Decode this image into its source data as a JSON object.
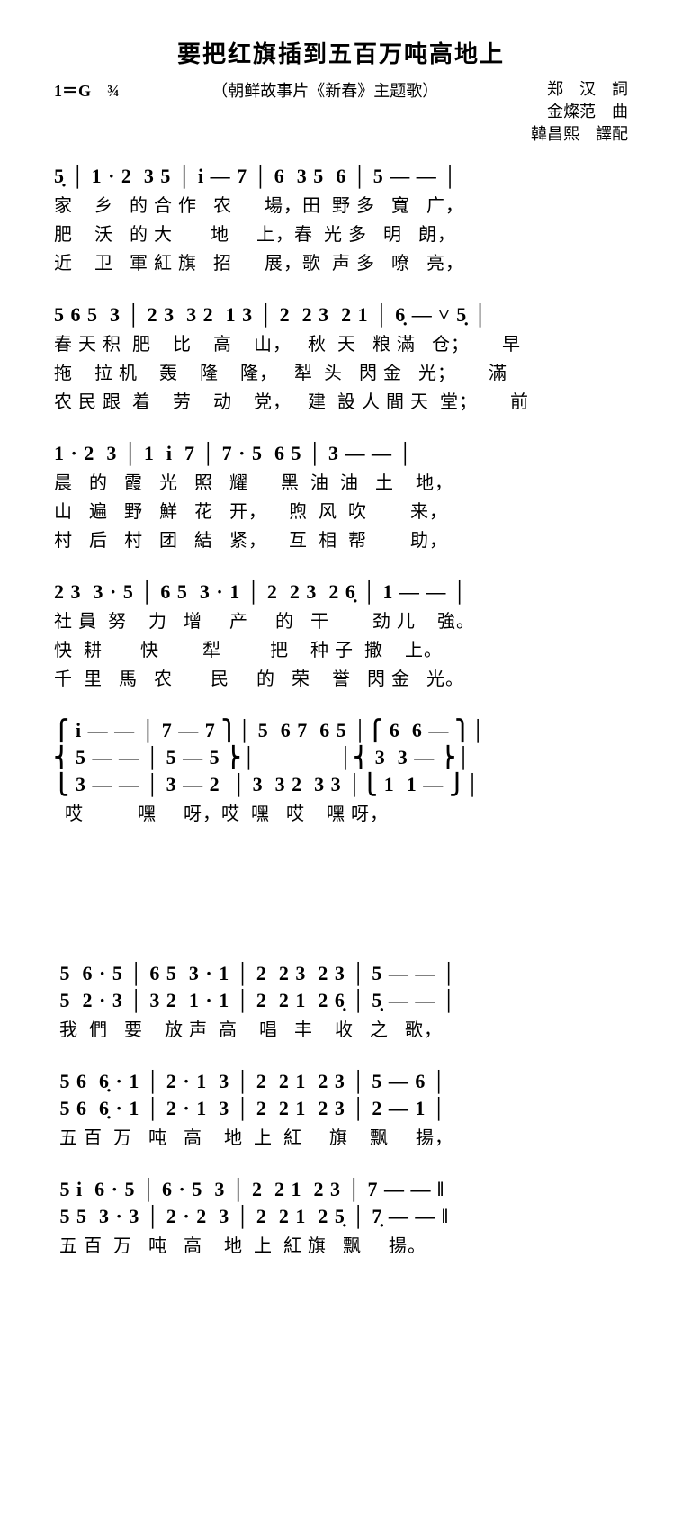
{
  "title": "要把红旗插到五百万吨高地上",
  "key_sig": "1＝G　¾",
  "subtitle": "（朝鲜故事片《新春》主题歌）",
  "credits": [
    "郑　汉　詞",
    "金燦范　曲",
    "韓昌熙　譯配"
  ],
  "sys1_notes": "5̣ │ 1 · 2  3 5 │ i — 7 │ 6  3 5  6 │ 5 — — │",
  "sys1_l1": "家    乡   的 合 作   农      場，田  野 多   寬   广，",
  "sys1_l2": "肥    沃   的 大       地     上，春  光 多   明   朗，",
  "sys1_l3": "近    卫   軍 紅 旗   招      展，歌  声 多   嘹   亮，",
  "sys2_notes": "5 6 5  3 │ 2 3  3 2  1 3 │ 2  2 3  2 1 │ 6̣ — ˅ 5̣ │",
  "sys2_l1": "春 天 积  肥    比    高    山，   秋  天   粮 滿   仓；      早",
  "sys2_l2": "拖    拉 机    轰    隆    隆，   犁  头   閃 金   光；      滿",
  "sys2_l3": "农 民 跟  着    劳    动    党，   建  設 人 間 天  堂；      前",
  "sys3_notes": "1 · 2  3 │ 1  i  7 │ 7 · 5  6 5 │ 3 — — │",
  "sys3_l1": "晨   的   霞   光   照   耀      黑  油  油   土    地，",
  "sys3_l2": "山   遍   野   鮮   花   开，    煦  风  吹        来，",
  "sys3_l3": "村   后   村   团   結   紧，    互  相  帮        助，",
  "sys4_notes": "2 3  3 · 5 │ 6 5  3 · 1 │ 2  2 3  2 6̣ │ 1 — — │",
  "sys4_l1": "社 員  努    力   增     产     的   干        劲 儿    強。",
  "sys4_l2": "快  耕       快        犁         把    种 子  撒    上。",
  "sys4_l3": "千  里   馬   农       民     的   荣    誉   閃 金   光。",
  "sys5_v1": "⎧ i — — │ 7 — 7 ⎫│ 5  6 7  6 5 │⎧ 6  6 — ⎫│",
  "sys5_v2": "⎨ 5 — — │ 5 — 5 ⎬│              │⎨ 3  3 — ⎬│",
  "sys5_v3": "⎩ 3 — — │ 3 — 2  │ 3  3 2  3 3 │⎩ 1  1 — ⎭│",
  "sys5_ly": "  哎          嘿     呀，哎  嘿   哎    嘿 呀，",
  "sys6_v1": " 5  6 · 5 │ 6 5  3 · 1 │ 2  2 3  2 3 │ 5 — — │",
  "sys6_v2": " 5  2 · 3 │ 3 2  1 · 1 │ 2  2 1  2 6̣ │ 5̣ — — │",
  "sys6_ly": " 我  們   要    放 声  高    唱   丰    收   之   歌，",
  "sys7_v1": " 5 6  6̣ · 1 │ 2 · 1  3 │ 2  2 1  2 3 │ 5 — 6 │",
  "sys7_v2": " 5 6  6̣ · 1 │ 2 · 1  3 │ 2  2 1  2 3 │ 2 — 1 │",
  "sys7_ly": " 五 百  万   吨   高    地  上  紅     旗    飘     揚，",
  "sys8_v1": " 5 i  6 · 5 │ 6 · 5  3 │ 2  2 1  2 3 │ 7 — — ‖",
  "sys8_v2": " 5 5  3 · 3 │ 2 · 2  3 │ 2  2 1  2 5̣ │ 7̣ — — ‖",
  "sys8_ly": " 五 百  万   吨   高    地  上  紅 旗   飘     揚。"
}
